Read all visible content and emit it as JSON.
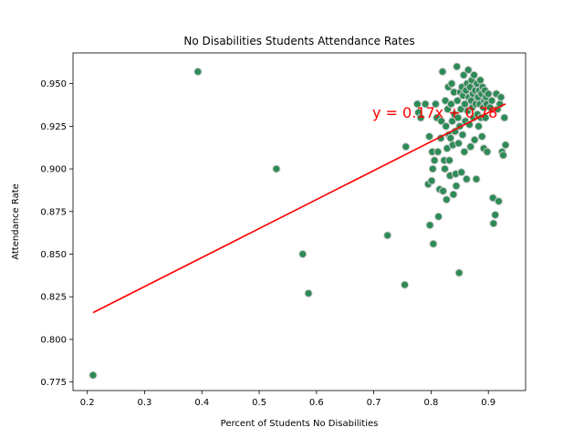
{
  "chart_data": {
    "type": "scatter",
    "title": "No Disabilities Students Attendance Rates",
    "xlabel": "Percent of Students No Disabilities",
    "ylabel": "Attendance Rate",
    "xlim": [
      0.175,
      0.965
    ],
    "ylim": [
      0.77,
      0.968
    ],
    "xticks": [
      0.2,
      0.3,
      0.4,
      0.5,
      0.6,
      0.7,
      0.8,
      0.9
    ],
    "xtick_labels": [
      "0.2",
      "0.3",
      "0.4",
      "0.5",
      "0.6",
      "0.7",
      "0.8",
      "0.9"
    ],
    "yticks": [
      0.775,
      0.8,
      0.825,
      0.85,
      0.875,
      0.9,
      0.925,
      0.95
    ],
    "ytick_labels": [
      "0.775",
      "0.800",
      "0.825",
      "0.850",
      "0.875",
      "0.900",
      "0.925",
      "0.950"
    ],
    "grid": false,
    "marker_color": "#2e8b57",
    "marker_edge": "#cccccc",
    "line_color": "#ff0000",
    "regression": {
      "slope": 0.17,
      "intercept": 0.78,
      "x_range": [
        0.21,
        0.93
      ]
    },
    "equation_label": "y = 0.17x + 0.78",
    "points": [
      [
        0.21,
        0.779
      ],
      [
        0.393,
        0.957
      ],
      [
        0.53,
        0.9
      ],
      [
        0.576,
        0.85
      ],
      [
        0.586,
        0.827
      ],
      [
        0.724,
        0.861
      ],
      [
        0.754,
        0.832
      ],
      [
        0.756,
        0.913
      ],
      [
        0.776,
        0.938
      ],
      [
        0.778,
        0.933
      ],
      [
        0.782,
        0.93
      ],
      [
        0.79,
        0.938
      ],
      [
        0.795,
        0.891
      ],
      [
        0.797,
        0.919
      ],
      [
        0.798,
        0.867
      ],
      [
        0.801,
        0.893
      ],
      [
        0.802,
        0.91
      ],
      [
        0.803,
        0.9
      ],
      [
        0.804,
        0.856
      ],
      [
        0.806,
        0.905
      ],
      [
        0.808,
        0.938
      ],
      [
        0.81,
        0.93
      ],
      [
        0.812,
        0.91
      ],
      [
        0.813,
        0.872
      ],
      [
        0.815,
        0.888
      ],
      [
        0.817,
        0.918
      ],
      [
        0.818,
        0.928
      ],
      [
        0.82,
        0.957
      ],
      [
        0.821,
        0.887
      ],
      [
        0.823,
        0.905
      ],
      [
        0.824,
        0.9
      ],
      [
        0.825,
        0.94
      ],
      [
        0.826,
        0.925
      ],
      [
        0.827,
        0.882
      ],
      [
        0.828,
        0.912
      ],
      [
        0.829,
        0.935
      ],
      [
        0.83,
        0.948
      ],
      [
        0.831,
        0.92
      ],
      [
        0.832,
        0.905
      ],
      [
        0.833,
        0.896
      ],
      [
        0.834,
        0.918
      ],
      [
        0.835,
        0.938
      ],
      [
        0.836,
        0.95
      ],
      [
        0.837,
        0.928
      ],
      [
        0.838,
        0.914
      ],
      [
        0.839,
        0.885
      ],
      [
        0.84,
        0.945
      ],
      [
        0.841,
        0.932
      ],
      [
        0.842,
        0.922
      ],
      [
        0.843,
        0.897
      ],
      [
        0.844,
        0.89
      ],
      [
        0.845,
        0.96
      ],
      [
        0.846,
        0.94
      ],
      [
        0.847,
        0.93
      ],
      [
        0.848,
        0.915
      ],
      [
        0.849,
        0.839
      ],
      [
        0.85,
        0.925
      ],
      [
        0.851,
        0.945
      ],
      [
        0.852,
        0.935
      ],
      [
        0.853,
        0.898
      ],
      [
        0.854,
        0.948
      ],
      [
        0.855,
        0.92
      ],
      [
        0.856,
        0.943
      ],
      [
        0.857,
        0.955
      ],
      [
        0.858,
        0.91
      ],
      [
        0.859,
        0.938
      ],
      [
        0.86,
        0.928
      ],
      [
        0.861,
        0.946
      ],
      [
        0.862,
        0.894
      ],
      [
        0.863,
        0.95
      ],
      [
        0.864,
        0.934
      ],
      [
        0.865,
        0.958
      ],
      [
        0.866,
        0.942
      ],
      [
        0.867,
        0.926
      ],
      [
        0.868,
        0.948
      ],
      [
        0.869,
        0.913
      ],
      [
        0.87,
        0.94
      ],
      [
        0.871,
        0.952
      ],
      [
        0.872,
        0.936
      ],
      [
        0.873,
        0.944
      ],
      [
        0.874,
        0.93
      ],
      [
        0.875,
        0.955
      ],
      [
        0.876,
        0.917
      ],
      [
        0.877,
        0.946
      ],
      [
        0.878,
        0.938
      ],
      [
        0.879,
        0.894
      ],
      [
        0.88,
        0.95
      ],
      [
        0.881,
        0.932
      ],
      [
        0.882,
        0.942
      ],
      [
        0.883,
        0.925
      ],
      [
        0.884,
        0.946
      ],
      [
        0.885,
        0.938
      ],
      [
        0.886,
        0.952
      ],
      [
        0.887,
        0.93
      ],
      [
        0.888,
        0.944
      ],
      [
        0.889,
        0.919
      ],
      [
        0.89,
        0.948
      ],
      [
        0.891,
        0.936
      ],
      [
        0.892,
        0.912
      ],
      [
        0.893,
        0.94
      ],
      [
        0.894,
        0.946
      ],
      [
        0.895,
        0.93
      ],
      [
        0.896,
        0.942
      ],
      [
        0.897,
        0.938
      ],
      [
        0.898,
        0.91
      ],
      [
        0.9,
        0.944
      ],
      [
        0.903,
        0.936
      ],
      [
        0.906,
        0.94
      ],
      [
        0.908,
        0.883
      ],
      [
        0.909,
        0.868
      ],
      [
        0.912,
        0.873
      ],
      [
        0.914,
        0.944
      ],
      [
        0.916,
        0.935
      ],
      [
        0.918,
        0.881
      ],
      [
        0.92,
        0.938
      ],
      [
        0.922,
        0.942
      ],
      [
        0.924,
        0.91
      ],
      [
        0.926,
        0.908
      ],
      [
        0.928,
        0.93
      ],
      [
        0.93,
        0.914
      ]
    ]
  }
}
